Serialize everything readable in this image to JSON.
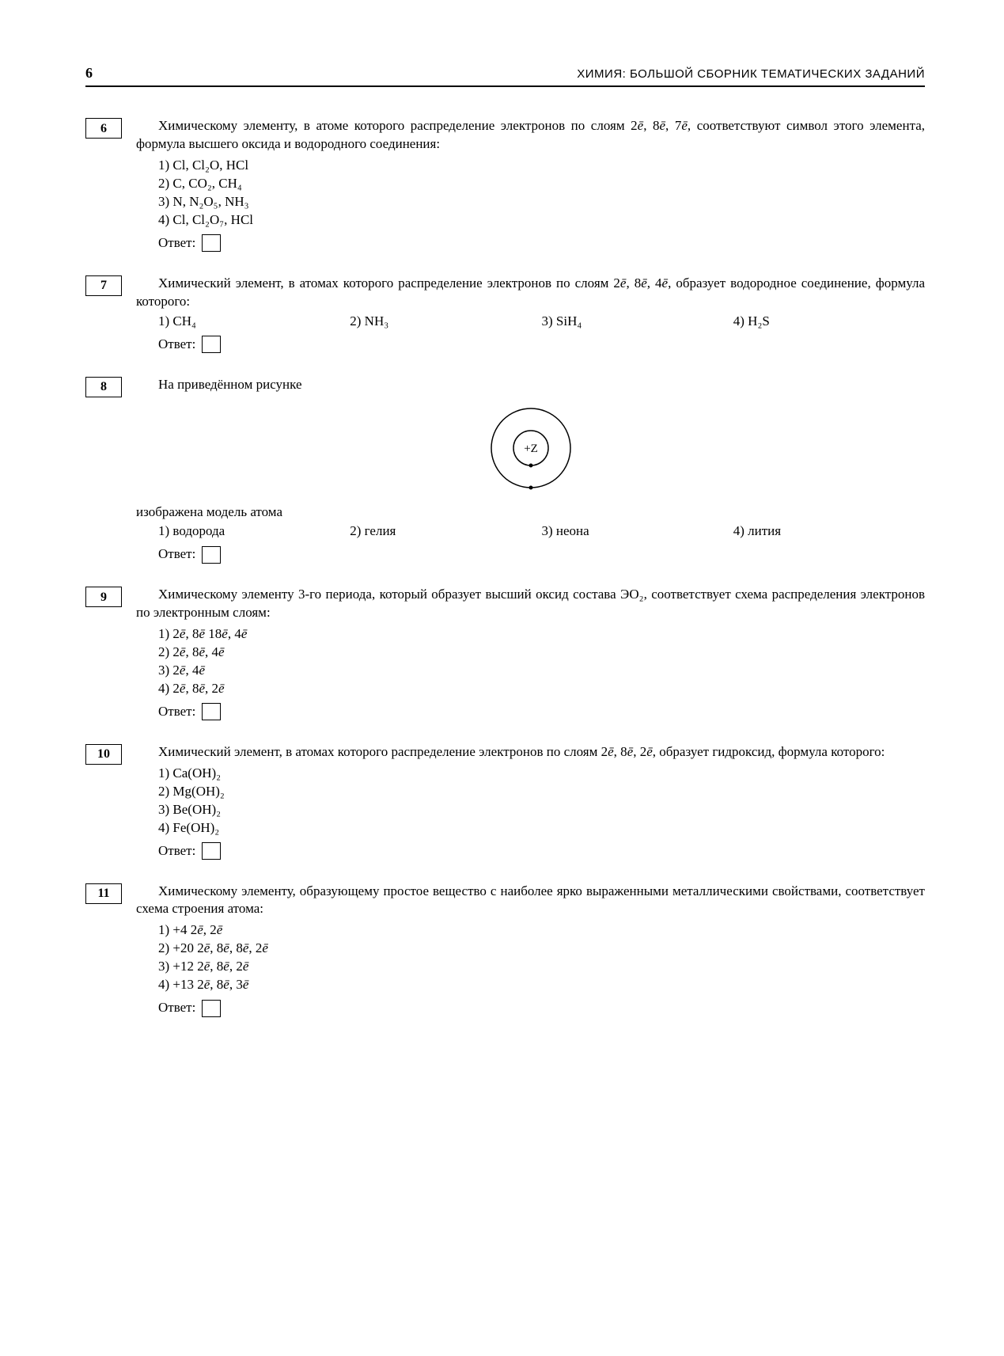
{
  "header": {
    "page_number": "6",
    "running_title": "ХИМИЯ: БОЛЬШОЙ СБОРНИК ТЕМАТИЧЕСКИХ ЗАДАНИЙ"
  },
  "answer_label": "Ответ:",
  "tasks": {
    "t6": {
      "num": "6",
      "stem": "Химическому элементу, в атоме которого распределение электронов по слоям 2ē, 8ē, 7ē, соответствуют символ этого элемента, формула высшего оксида и водородного соединения:",
      "opts": [
        "1) Cl, Cl₂O, HCl",
        "2) C, CO₂, CH₄",
        "3) N, N₂O₅, NH₃",
        "4) Cl, Cl₂O₇, HCl"
      ]
    },
    "t7": {
      "num": "7",
      "stem": "Химический элемент, в атомах которого распределение электронов по слоям 2ē, 8ē, 4ē, образует водородное соединение, формула которого:",
      "opts": [
        "1) CH₄",
        "2) NH₃",
        "3) SiH₄",
        "4) H₂S"
      ]
    },
    "t8": {
      "num": "8",
      "stem_pre": "На приведённом рисунке",
      "stem_post": "изображена модель атома",
      "nucleus_label": "+Z",
      "opts": [
        "1) водорода",
        "2) гелия",
        "3) неона",
        "4) лития"
      ]
    },
    "t9": {
      "num": "9",
      "stem": "Химическому элементу 3-го периода, который образует высший оксид состава ЭО₂, соответствует схема распределения электронов по электронным слоям:",
      "opts": [
        "1) 2ē, 8ē 18ē, 4ē",
        "2) 2ē, 8ē, 4ē",
        "3) 2ē, 4ē",
        "4) 2ē, 8ē, 2ē"
      ]
    },
    "t10": {
      "num": "10",
      "stem": "Химический элемент, в атомах которого распределение электронов по слоям 2ē, 8ē, 2ē, образует гидроксид, формула которого:",
      "opts": [
        "1) Ca(OH)₂",
        "2) Mg(OH)₂",
        "3) Be(OH)₂",
        "4) Fe(OH)₂"
      ]
    },
    "t11": {
      "num": "11",
      "stem": "Химическому элементу, образующему простое вещество с наиболее ярко выраженными металлическими свойствами, соответствует схема строения атома:",
      "opts": [
        "1) +4 2ē, 2ē",
        "2) +20 2ē, 8ē, 8ē, 2ē",
        "3) +12 2ē, 8ē, 2ē",
        "4) +13 2ē, 8ē, 3ē"
      ]
    }
  }
}
